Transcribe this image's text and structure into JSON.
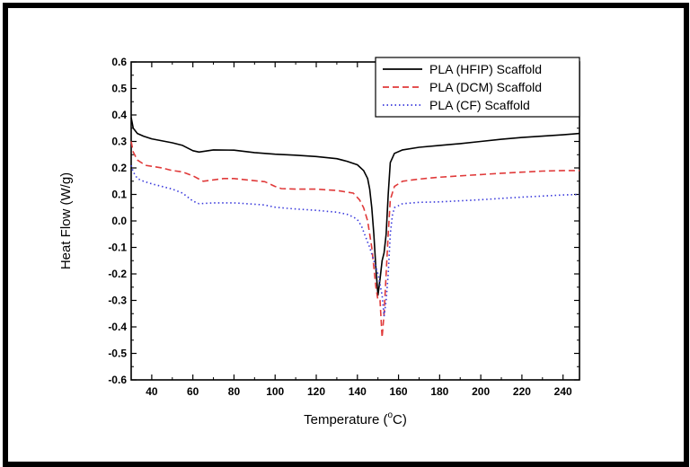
{
  "chart_data": {
    "type": "line",
    "title": "",
    "xlabel": "Temperature (°C)",
    "xlabel_parts": {
      "prefix": "Temperature (",
      "sup": "o",
      "suffix": "C)"
    },
    "ylabel": "Heat Flow (W/g)",
    "xlim": [
      30,
      248
    ],
    "ylim": [
      -0.6,
      0.6
    ],
    "x_ticks": [
      40,
      60,
      80,
      100,
      120,
      140,
      160,
      180,
      200,
      220,
      240
    ],
    "y_ticks": [
      -0.6,
      -0.5,
      -0.4,
      -0.3,
      -0.2,
      -0.1,
      0.0,
      0.1,
      0.2,
      0.3,
      0.4,
      0.5,
      0.6
    ],
    "y_tick_labels": [
      "-0.6",
      "-0.5",
      "-0.4",
      "-0.3",
      "-0.2",
      "-0.1",
      "0.0",
      "0.1",
      "0.2",
      "0.3",
      "0.4",
      "0.5",
      "0.6"
    ],
    "grid": false,
    "legend_position": "top-right",
    "series": [
      {
        "name": "PLA (HFIP) Scaffold",
        "color": "#000000",
        "style": "solid",
        "points": [
          [
            30,
            0.39
          ],
          [
            31,
            0.35
          ],
          [
            33,
            0.33
          ],
          [
            36,
            0.32
          ],
          [
            40,
            0.31
          ],
          [
            50,
            0.295
          ],
          [
            55,
            0.285
          ],
          [
            60,
            0.265
          ],
          [
            63,
            0.26
          ],
          [
            70,
            0.268
          ],
          [
            80,
            0.267
          ],
          [
            90,
            0.258
          ],
          [
            100,
            0.252
          ],
          [
            110,
            0.248
          ],
          [
            120,
            0.243
          ],
          [
            130,
            0.235
          ],
          [
            135,
            0.225
          ],
          [
            140,
            0.212
          ],
          [
            143,
            0.19
          ],
          [
            145,
            0.16
          ],
          [
            146,
            0.12
          ],
          [
            147,
            0.05
          ],
          [
            148,
            -0.05
          ],
          [
            149,
            -0.18
          ],
          [
            150,
            -0.28
          ],
          [
            151,
            -0.22
          ],
          [
            152,
            -0.15
          ],
          [
            153,
            -0.12
          ],
          [
            154,
            -0.05
          ],
          [
            155,
            0.1
          ],
          [
            156,
            0.22
          ],
          [
            158,
            0.255
          ],
          [
            162,
            0.268
          ],
          [
            170,
            0.278
          ],
          [
            180,
            0.285
          ],
          [
            190,
            0.292
          ],
          [
            200,
            0.3
          ],
          [
            210,
            0.308
          ],
          [
            220,
            0.315
          ],
          [
            230,
            0.32
          ],
          [
            240,
            0.325
          ],
          [
            248,
            0.33
          ]
        ]
      },
      {
        "name": "PLA (DCM) Scaffold",
        "color": "#e03a3a",
        "style": "dashed",
        "points": [
          [
            30,
            0.3
          ],
          [
            31,
            0.26
          ],
          [
            33,
            0.23
          ],
          [
            37,
            0.21
          ],
          [
            45,
            0.2
          ],
          [
            50,
            0.19
          ],
          [
            55,
            0.185
          ],
          [
            60,
            0.17
          ],
          [
            65,
            0.15
          ],
          [
            70,
            0.155
          ],
          [
            75,
            0.16
          ],
          [
            80,
            0.16
          ],
          [
            90,
            0.152
          ],
          [
            95,
            0.148
          ],
          [
            100,
            0.13
          ],
          [
            103,
            0.122
          ],
          [
            110,
            0.12
          ],
          [
            120,
            0.12
          ],
          [
            130,
            0.115
          ],
          [
            138,
            0.105
          ],
          [
            141,
            0.08
          ],
          [
            143,
            0.05
          ],
          [
            145,
            0.0
          ],
          [
            147,
            -0.1
          ],
          [
            149,
            -0.25
          ],
          [
            150,
            -0.3
          ],
          [
            151,
            -0.3
          ],
          [
            152,
            -0.44
          ],
          [
            153,
            -0.35
          ],
          [
            154,
            -0.2
          ],
          [
            155,
            -0.05
          ],
          [
            156,
            0.08
          ],
          [
            158,
            0.13
          ],
          [
            162,
            0.15
          ],
          [
            170,
            0.158
          ],
          [
            180,
            0.165
          ],
          [
            190,
            0.17
          ],
          [
            200,
            0.175
          ],
          [
            210,
            0.18
          ],
          [
            220,
            0.184
          ],
          [
            230,
            0.188
          ],
          [
            240,
            0.19
          ],
          [
            248,
            0.19
          ]
        ]
      },
      {
        "name": "PLA (CF) Scaffold",
        "color": "#3a3adc",
        "style": "dotted",
        "points": [
          [
            30,
            0.21
          ],
          [
            31,
            0.185
          ],
          [
            33,
            0.16
          ],
          [
            36,
            0.15
          ],
          [
            40,
            0.14
          ],
          [
            50,
            0.12
          ],
          [
            55,
            0.105
          ],
          [
            60,
            0.075
          ],
          [
            63,
            0.065
          ],
          [
            70,
            0.068
          ],
          [
            80,
            0.068
          ],
          [
            90,
            0.063
          ],
          [
            95,
            0.06
          ],
          [
            100,
            0.052
          ],
          [
            105,
            0.048
          ],
          [
            110,
            0.045
          ],
          [
            120,
            0.04
          ],
          [
            130,
            0.033
          ],
          [
            135,
            0.025
          ],
          [
            138,
            0.015
          ],
          [
            140,
            0.005
          ],
          [
            142,
            -0.02
          ],
          [
            144,
            -0.06
          ],
          [
            146,
            -0.1
          ],
          [
            148,
            -0.15
          ],
          [
            150,
            -0.2
          ],
          [
            152,
            -0.28
          ],
          [
            153,
            -0.36
          ],
          [
            154,
            -0.3
          ],
          [
            155,
            -0.2
          ],
          [
            156,
            -0.05
          ],
          [
            157,
            0.02
          ],
          [
            158,
            0.05
          ],
          [
            162,
            0.065
          ],
          [
            170,
            0.07
          ],
          [
            180,
            0.072
          ],
          [
            190,
            0.076
          ],
          [
            200,
            0.08
          ],
          [
            210,
            0.085
          ],
          [
            220,
            0.09
          ],
          [
            230,
            0.094
          ],
          [
            240,
            0.098
          ],
          [
            248,
            0.1
          ]
        ]
      }
    ]
  }
}
